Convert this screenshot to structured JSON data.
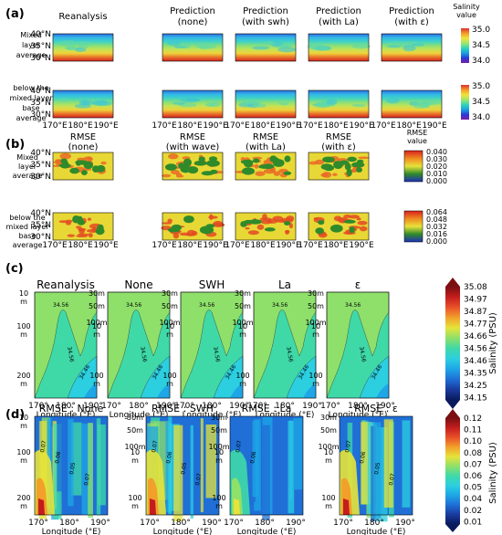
{
  "figure": {
    "panel_a": {
      "letter": "(a)",
      "columns": [
        [
          "Reanalysis"
        ],
        [
          "Prediction",
          "(none)"
        ],
        [
          "Prediction",
          "(with swh)"
        ],
        [
          "Prediction",
          "(with La)"
        ],
        [
          "Prediction",
          "(with ε)"
        ]
      ],
      "rows": [
        {
          "label": [
            "Mixed",
            "layer",
            "average"
          ]
        },
        {
          "label": [
            "below the",
            "mixed layer",
            "base",
            "average"
          ]
        }
      ],
      "y_ticks": [
        "40°N",
        "35°N",
        "30°N"
      ],
      "x_ticks": [
        "170°E",
        "180°E",
        "190°E"
      ],
      "colorbar": {
        "title": [
          "Salinity",
          "value"
        ],
        "ticks": [
          "35.0",
          "34.5",
          "34.0"
        ],
        "palette": [
          "#7a1fa8",
          "#2a3ad6",
          "#1aa0e0",
          "#2ed6b6",
          "#9ee86a",
          "#f2e23a",
          "#f59a2a",
          "#e02d2d"
        ]
      }
    },
    "panel_b": {
      "letter": "(b)",
      "columns": [
        [
          "RMSE",
          "(none)"
        ],
        [
          "RMSE",
          "(with wave)"
        ],
        [
          "RMSE",
          "(with La)"
        ],
        [
          "RMSE",
          "(with ε)"
        ]
      ],
      "rows": [
        {
          "label": [
            "Mixed",
            "layer",
            "average"
          ],
          "colorbar_ticks": [
            "0.040",
            "0.030",
            "0.020",
            "0.010",
            "0.000"
          ]
        },
        {
          "label": [
            "below the",
            "mixed layer",
            "base",
            "average"
          ],
          "colorbar_ticks": [
            "0.064",
            "0.048",
            "0.032",
            "0.016",
            "0.000"
          ]
        }
      ],
      "y_ticks": [
        "40°N",
        "35°N",
        "30°N"
      ],
      "x_ticks": [
        "170°E",
        "180°E",
        "190°E"
      ],
      "colorbar": {
        "title": [
          "RMSE",
          "value"
        ],
        "palette": [
          "#1f2fb8",
          "#2f8a2a",
          "#e8e23a",
          "#f08a1f",
          "#d8201f"
        ]
      }
    },
    "panel_c": {
      "letter": "(c)",
      "titles": [
        "Reanalysis",
        "None",
        "SWH",
        "La",
        "ε"
      ],
      "left_depth_ticks": [
        "10\nm",
        "100\nm",
        "200\nm"
      ],
      "right_depth_ticks": [
        "30\nm",
        "50\nm",
        "100\nm"
      ],
      "contour_labels": [
        "34.56",
        "34.56",
        "34.46"
      ],
      "x_ticks": [
        "170°",
        "180°",
        "190°"
      ],
      "xlabel": "Longitude (°E)",
      "colorbar": {
        "label": "Salinity (PSU)",
        "ticks": [
          "35.08",
          "34.97",
          "34.87",
          "34.77",
          "34.66",
          "34.56",
          "34.46",
          "34.35",
          "34.25",
          "34.15"
        ],
        "palette": [
          "#0a1a5c",
          "#1a3a9e",
          "#1f6fd6",
          "#1ea6e6",
          "#2ccfe0",
          "#3fd9a8",
          "#8ee06a",
          "#e6e33a",
          "#f2a02a",
          "#e8502a",
          "#c41d1d",
          "#7a0f12"
        ]
      }
    },
    "panel_d": {
      "letter": "(d)",
      "titles": [
        "RMSE : None",
        "RMSE : SWH",
        "RMSE : La",
        "RMSE : ε"
      ],
      "left_depth_ticks": [
        "10\nm",
        "100\nm",
        "200\nm"
      ],
      "right_depth_ticks": [
        "30\nm",
        "50\nm",
        "100\nm"
      ],
      "contour_labels": [
        "0.07",
        "0.06",
        "0.05",
        "0.07"
      ],
      "x_ticks": [
        "170°",
        "180°",
        "190°"
      ],
      "xlabel": "Longitude (°E)",
      "colorbar": {
        "label": "Salinity (PSU)",
        "ticks": [
          "0.12",
          "0.11",
          "0.10",
          "0.08",
          "0.07",
          "0.06",
          "0.05",
          "0.04",
          "0.02",
          "0.01"
        ],
        "palette": [
          "#0a1a5c",
          "#1a3a9e",
          "#1f6fd6",
          "#1ea6e6",
          "#2ccfe0",
          "#3fd9a8",
          "#8ee06a",
          "#e6e33a",
          "#f2a02a",
          "#e8502a",
          "#c41d1d",
          "#7a0f12"
        ]
      }
    }
  },
  "chart_data": [
    {
      "type": "heatmap",
      "panel": "(a)",
      "titles": [
        "Reanalysis",
        "Prediction (none)",
        "Prediction (with swh)",
        "Prediction (with La)",
        "Prediction (with ε)"
      ],
      "rows": [
        "Mixed layer average",
        "below the mixed layer base average"
      ],
      "x_ticks": [
        "170°E",
        "180°E",
        "190°E"
      ],
      "y_ticks": [
        "30°N",
        "35°N",
        "40°N"
      ],
      "colorbar_label": "Salinity value",
      "colorbar_range": [
        34.0,
        35.0
      ],
      "description_values": {
        "north_edge": 34.1,
        "center": 34.5,
        "south_edge": 35.0
      }
    },
    {
      "type": "heatmap",
      "panel": "(b)",
      "titles": [
        "RMSE (none)",
        "RMSE (with wave)",
        "RMSE (with La)",
        "RMSE (with ε)"
      ],
      "rows": [
        "Mixed layer average",
        "below the mixed layer base average"
      ],
      "x_ticks": [
        "170°E",
        "180°E",
        "190°E"
      ],
      "y_ticks": [
        "30°N",
        "35°N",
        "40°N"
      ],
      "colorbar_label": "RMSE value",
      "colorbar_ticks_row1": [
        0.0,
        0.01,
        0.02,
        0.03,
        0.04
      ],
      "colorbar_ticks_row2": [
        0.0,
        0.016,
        0.032,
        0.048,
        0.064
      ]
    },
    {
      "type": "heatmap",
      "panel": "(c)",
      "titles": [
        "Reanalysis",
        "None",
        "SWH",
        "La",
        "ε"
      ],
      "x_ticks": [
        "170°",
        "180°",
        "190°"
      ],
      "xlabel": "Longitude (°E)",
      "y_ticks": [
        "10 m",
        "100 m",
        "200 m"
      ],
      "colorbar_label": "Salinity (PSU)",
      "colorbar_ticks": [
        34.15,
        34.25,
        34.35,
        34.46,
        34.56,
        34.66,
        34.77,
        34.87,
        34.97,
        35.08
      ]
    },
    {
      "type": "heatmap",
      "panel": "(d)",
      "titles": [
        "RMSE : None",
        "RMSE : SWH",
        "RMSE : La",
        "RMSE : ε"
      ],
      "x_ticks": [
        "170°",
        "180°",
        "190°"
      ],
      "xlabel": "Longitude (°E)",
      "y_ticks": [
        "10 m",
        "100 m",
        "200 m"
      ],
      "colorbar_label": "Salinity (PSU)",
      "colorbar_ticks": [
        0.01,
        0.02,
        0.04,
        0.05,
        0.06,
        0.07,
        0.08,
        0.1,
        0.11,
        0.12
      ]
    }
  ]
}
